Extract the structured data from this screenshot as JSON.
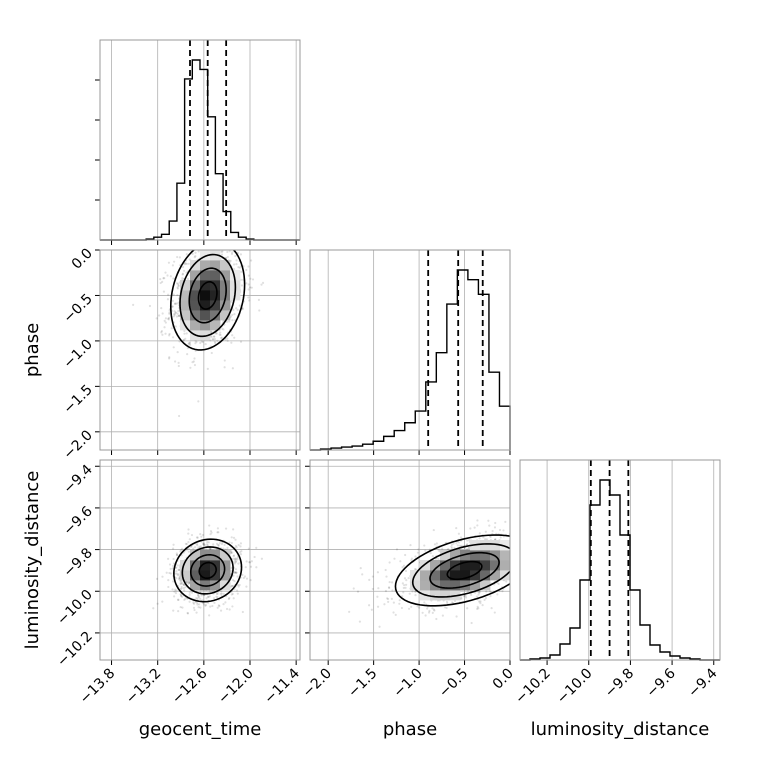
{
  "chart_data": {
    "type": "corner",
    "parameters": [
      "geocent_time",
      "phase",
      "luminosity_distance"
    ],
    "axis_labels": {
      "geocent_time": "geocent_time",
      "phase": "phase",
      "luminosity_distance": "luminosity_distance"
    },
    "ranges": {
      "geocent_time": [
        -13.95,
        -11.35
      ],
      "phase": [
        -2.2,
        0.0
      ],
      "luminosity_distance": [
        -10.33,
        -9.37
      ]
    },
    "ticks": {
      "geocent_time": [
        -13.8,
        -13.2,
        -12.6,
        -12.0,
        -11.4
      ],
      "phase": [
        -2.0,
        -1.5,
        -1.0,
        -0.5,
        0.0
      ],
      "luminosity_distance": [
        -10.2,
        -10.0,
        -9.8,
        -9.6,
        -9.4
      ]
    },
    "tick_labels": {
      "geocent_time": [
        "−13.8",
        "−13.2",
        "−12.6",
        "−12.0",
        "−11.4"
      ],
      "phase": [
        "−2.0",
        "−1.5",
        "−1.0",
        "−0.5",
        "0.0"
      ],
      "luminosity_distance": [
        "−10.2",
        "−10.0",
        "−9.8",
        "−9.6",
        "−9.4"
      ]
    },
    "quantiles": {
      "geocent_time": [
        -12.78,
        -12.55,
        -12.31
      ],
      "phase": [
        -0.9,
        -0.57,
        -0.3
      ],
      "luminosity_distance": [
        -9.99,
        -9.9,
        -9.81
      ]
    },
    "histograms": {
      "geocent_time": {
        "range": [
          -13.95,
          -11.35
        ],
        "counts": [
          0,
          0,
          0,
          0,
          0,
          0,
          1,
          3,
          6,
          20,
          60,
          170,
          190,
          180,
          130,
          70,
          30,
          8,
          3,
          1,
          0,
          0,
          0,
          0,
          0,
          0
        ]
      },
      "phase": {
        "range": [
          -2.2,
          0.0
        ],
        "counts": [
          0,
          1,
          2,
          3,
          4,
          6,
          9,
          14,
          20,
          28,
          40,
          70,
          100,
          150,
          185,
          175,
          160,
          80,
          45
        ]
      },
      "luminosity_distance": {
        "range": [
          -10.33,
          -9.37
        ],
        "counts": [
          0,
          1,
          2,
          5,
          16,
          32,
          80,
          155,
          180,
          165,
          125,
          70,
          35,
          15,
          8,
          4,
          2,
          1,
          0,
          0
        ]
      }
    },
    "joint": [
      {
        "x": "geocent_time",
        "y": "phase",
        "mean": [
          -12.55,
          -0.5
        ],
        "sd": [
          0.24,
          0.3
        ],
        "rho": 0.2
      },
      {
        "x": "geocent_time",
        "y": "luminosity_distance",
        "mean": [
          -12.55,
          -9.9
        ],
        "sd": [
          0.22,
          0.075
        ],
        "rho": 0.1
      },
      {
        "x": "phase",
        "y": "luminosity_distance",
        "mean": [
          -0.5,
          -9.9
        ],
        "sd": [
          0.38,
          0.085
        ],
        "rho": 0.45
      }
    ],
    "grid": true
  }
}
